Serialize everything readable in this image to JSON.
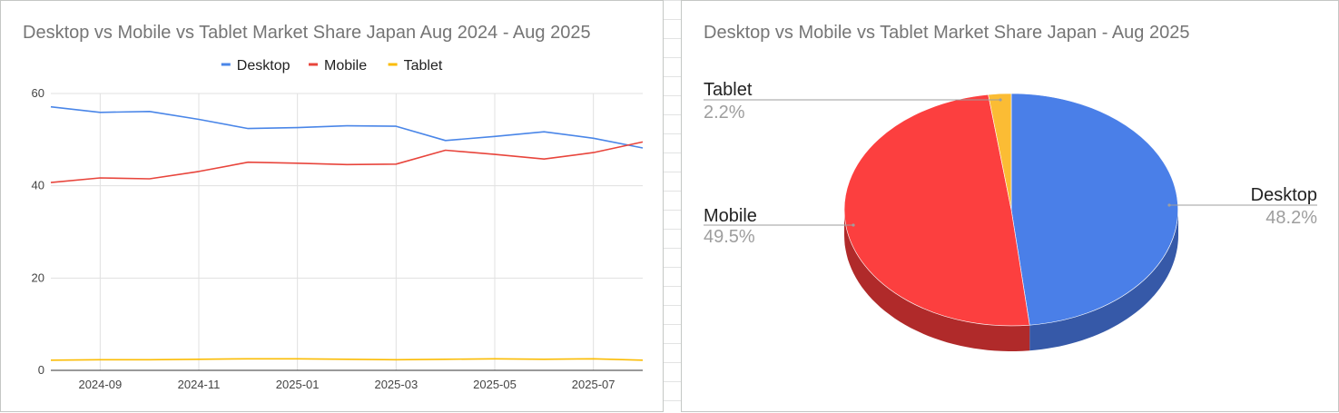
{
  "chart_data": [
    {
      "type": "line",
      "title": "Desktop vs Mobile vs Tablet Market Share Japan Aug 2024 - Aug 2025",
      "xlabel": "",
      "ylabel": "",
      "x": [
        "2024-08",
        "2024-09",
        "2024-10",
        "2024-11",
        "2024-12",
        "2025-01",
        "2025-02",
        "2025-03",
        "2025-04",
        "2025-05",
        "2025-06",
        "2025-07",
        "2025-08"
      ],
      "x_tick_labels": [
        "2024-09",
        "2024-11",
        "2025-01",
        "2025-03",
        "2025-05",
        "2025-07"
      ],
      "y_ticks": [
        0,
        20,
        40,
        60
      ],
      "ylim": [
        0,
        60
      ],
      "grid": true,
      "legend_position": "top",
      "series": [
        {
          "name": "Desktop",
          "color": "#4a86e8",
          "values": [
            57.1,
            55.9,
            56.1,
            54.4,
            52.4,
            52.6,
            53.0,
            52.9,
            49.8,
            50.7,
            51.7,
            50.3,
            48.2
          ]
        },
        {
          "name": "Mobile",
          "color": "#e8453c",
          "values": [
            40.7,
            41.7,
            41.5,
            43.1,
            45.1,
            44.9,
            44.6,
            44.7,
            47.7,
            46.8,
            45.8,
            47.2,
            49.5
          ]
        },
        {
          "name": "Tablet",
          "color": "#fbbc04",
          "values": [
            2.2,
            2.3,
            2.3,
            2.4,
            2.5,
            2.5,
            2.4,
            2.3,
            2.4,
            2.5,
            2.4,
            2.5,
            2.2
          ]
        }
      ]
    },
    {
      "type": "pie",
      "title": "Desktop vs Mobile vs Tablet Market Share Japan - Aug 2025",
      "three_d": true,
      "slices": [
        {
          "name": "Desktop",
          "value": 48.2,
          "label": "48.2%",
          "color": "#4a7fe8",
          "side_color": "#3659a8"
        },
        {
          "name": "Mobile",
          "value": 49.5,
          "label": "49.5%",
          "color": "#fc3f3f",
          "side_color": "#b02a2a"
        },
        {
          "name": "Tablet",
          "value": 2.2,
          "label": "2.2%",
          "color": "#fbbc34",
          "side_color": "#b8891f"
        }
      ]
    }
  ]
}
